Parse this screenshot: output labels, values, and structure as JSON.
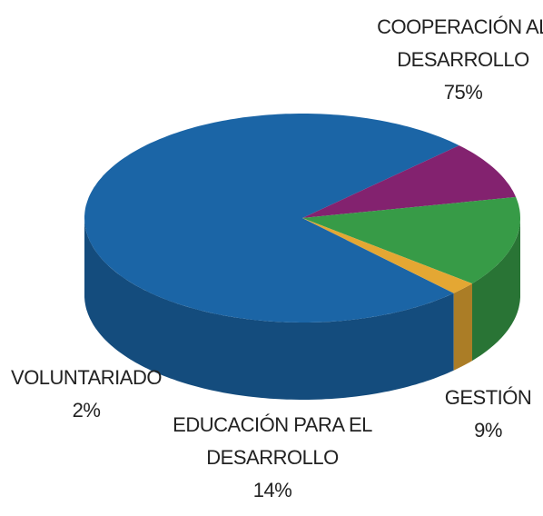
{
  "chart_data": {
    "type": "pie",
    "categories": [
      "COOPERACIÓN AL DESARROLLO",
      "GESTIÓN",
      "EDUCACIÓN PARA EL DESARROLLO",
      "VOLUNTARIADO"
    ],
    "values": [
      75,
      9,
      14,
      2
    ],
    "value_labels": [
      "75%",
      "9%",
      "14%",
      "2%"
    ],
    "colors": [
      "#1b65a6",
      "#83226f",
      "#379b47",
      "#e4a733"
    ]
  }
}
